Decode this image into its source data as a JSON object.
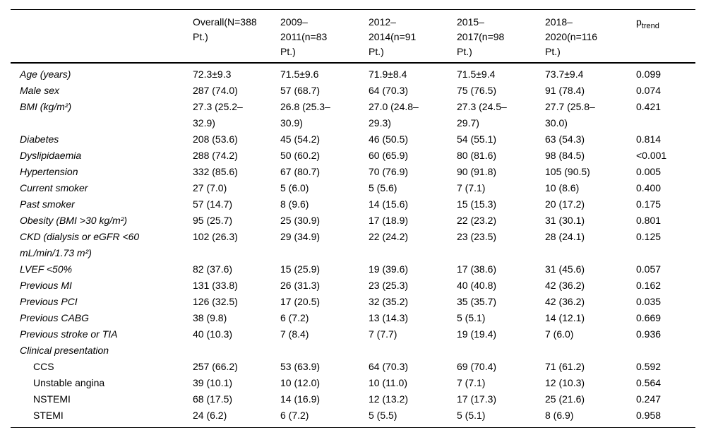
{
  "table": {
    "columns": [
      {
        "label": ""
      },
      {
        "label": "Overall(N=388\nPt.)"
      },
      {
        "label": "2009–\n2011(n=83\nPt.)"
      },
      {
        "label": "2012–\n2014(n=91\nPt.)"
      },
      {
        "label": "2015–\n2017(n=98\nPt.)"
      },
      {
        "label": "2018–\n2020(n=116\nPt.)"
      },
      {
        "label": "p",
        "sub": "trend"
      }
    ],
    "rows": [
      {
        "label": "Age (years)",
        "italic": true,
        "indent": false,
        "values": [
          "72.3±9.3",
          "71.5±9.6",
          "71.9±8.4",
          "71.5±9.4",
          "73.7±9.4"
        ],
        "p": "0.099"
      },
      {
        "label": "Male sex",
        "italic": true,
        "indent": false,
        "values": [
          "287 (74.0)",
          "57 (68.7)",
          "64 (70.3)",
          "75 (76.5)",
          "91 (78.4)"
        ],
        "p": "0.074"
      },
      {
        "label": "BMI (kg/m²)",
        "italic": true,
        "indent": false,
        "values": [
          "27.3 (25.2–\n32.9)",
          "26.8 (25.3–\n30.9)",
          "27.0 (24.8–\n29.3)",
          "27.3 (24.5–\n29.7)",
          "27.7 (25.8–\n30.0)"
        ],
        "p": "0.421"
      },
      {
        "label": "Diabetes",
        "italic": true,
        "indent": false,
        "values": [
          "208 (53.6)",
          "45 (54.2)",
          "46 (50.5)",
          "54 (55.1)",
          "63 (54.3)"
        ],
        "p": "0.814"
      },
      {
        "label": "Dyslipidaemia",
        "italic": true,
        "indent": false,
        "values": [
          "288 (74.2)",
          "50 (60.2)",
          "60 (65.9)",
          "80 (81.6)",
          "98 (84.5)"
        ],
        "p": "<0.001"
      },
      {
        "label": "Hypertension",
        "italic": true,
        "indent": false,
        "values": [
          "332 (85.6)",
          "67 (80.7)",
          "70 (76.9)",
          "90 (91.8)",
          "105 (90.5)"
        ],
        "p": "0.005"
      },
      {
        "label": "Current smoker",
        "italic": true,
        "indent": false,
        "values": [
          "27 (7.0)",
          "5 (6.0)",
          "5 (5.6)",
          "7 (7.1)",
          "10 (8.6)"
        ],
        "p": "0.400"
      },
      {
        "label": "Past smoker",
        "italic": true,
        "indent": false,
        "values": [
          "57 (14.7)",
          "8 (9.6)",
          "14 (15.6)",
          "15 (15.3)",
          "20 (17.2)"
        ],
        "p": "0.175"
      },
      {
        "label": "Obesity (BMI >30 kg/m²)",
        "italic": true,
        "indent": false,
        "values": [
          "95 (25.7)",
          "25 (30.9)",
          "17 (18.9)",
          "22 (23.2)",
          "31 (30.1)"
        ],
        "p": "0.801"
      },
      {
        "label": "CKD (dialysis or eGFR <60\nmL/min/1.73 m²)",
        "italic": true,
        "indent": false,
        "values": [
          "102 (26.3)",
          "29 (34.9)",
          "22 (24.2)",
          "23 (23.5)",
          "28 (24.1)"
        ],
        "p": "0.125"
      },
      {
        "label": "LVEF <50%",
        "italic": true,
        "indent": false,
        "values": [
          "82 (37.6)",
          "15 (25.9)",
          "19 (39.6)",
          "17 (38.6)",
          "31 (45.6)"
        ],
        "p": "0.057"
      },
      {
        "label": "Previous MI",
        "italic": true,
        "indent": false,
        "values": [
          "131 (33.8)",
          "26 (31.3)",
          "23 (25.3)",
          "40 (40.8)",
          "42 (36.2)"
        ],
        "p": "0.162"
      },
      {
        "label": "Previous PCI",
        "italic": true,
        "indent": false,
        "values": [
          "126 (32.5)",
          "17 (20.5)",
          "32 (35.2)",
          "35 (35.7)",
          "42 (36.2)"
        ],
        "p": "0.035"
      },
      {
        "label": "Previous CABG",
        "italic": true,
        "indent": false,
        "values": [
          "38 (9.8)",
          "6 (7.2)",
          "13 (14.3)",
          "5 (5.1)",
          "14 (12.1)"
        ],
        "p": "0.669"
      },
      {
        "label": "Previous stroke or TIA",
        "italic": true,
        "indent": false,
        "values": [
          "40 (10.3)",
          "7 (8.4)",
          "7 (7.7)",
          "19 (19.4)",
          "7 (6.0)"
        ],
        "p": "0.936"
      },
      {
        "label": "Clinical presentation",
        "italic": true,
        "indent": false,
        "values": [
          "",
          "",
          "",
          "",
          ""
        ],
        "p": ""
      },
      {
        "label": "CCS",
        "italic": false,
        "indent": true,
        "values": [
          "257 (66.2)",
          "53 (63.9)",
          "64 (70.3)",
          "69 (70.4)",
          "71 (61.2)"
        ],
        "p": "0.592"
      },
      {
        "label": "Unstable angina",
        "italic": false,
        "indent": true,
        "values": [
          "39 (10.1)",
          "10 (12.0)",
          "10 (11.0)",
          "7 (7.1)",
          "12 (10.3)"
        ],
        "p": "0.564"
      },
      {
        "label": "NSTEMI",
        "italic": false,
        "indent": true,
        "values": [
          "68 (17.5)",
          "14 (16.9)",
          "12 (13.2)",
          "17 (17.3)",
          "25 (21.6)"
        ],
        "p": "0.247"
      },
      {
        "label": "STEMI",
        "italic": false,
        "indent": true,
        "values": [
          "24 (6.2)",
          "6 (7.2)",
          "5 (5.5)",
          "5 (5.1)",
          "8 (6.9)"
        ],
        "p": "0.958"
      }
    ]
  }
}
